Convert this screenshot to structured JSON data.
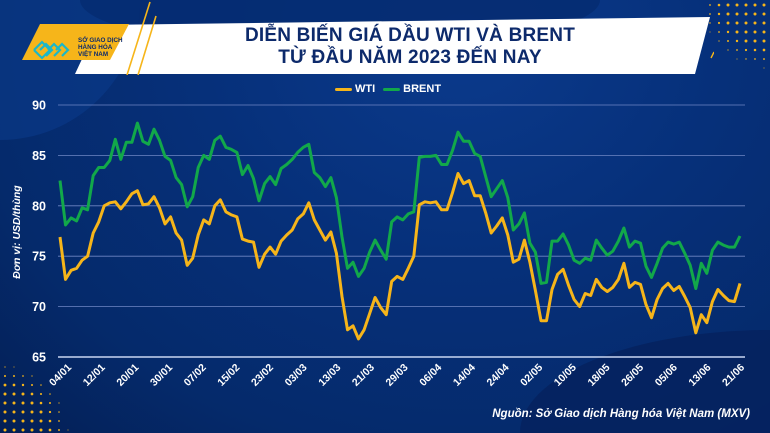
{
  "brand": {
    "logo_lines": [
      "SỞ GIAO DỊCH",
      "HÀNG HÓA",
      "VIỆT NAM"
    ],
    "accent_yellow": "#f6b51a",
    "navy": "#062a6e"
  },
  "title": {
    "line1": "DIỄN BIẾN GIÁ DẦU WTI VÀ BRENT",
    "line2": "TỪ ĐẦU NĂM 2023 ĐẾN NAY"
  },
  "source_note": "Nguồn: Sở Giao dịch Hàng hóa Việt Nam (MXV)",
  "chart_data": {
    "type": "line",
    "title": "DIỄN BIẾN GIÁ DẦU WTI VÀ BRENT TỪ ĐẦU NĂM 2023 ĐẾN NAY",
    "xlabel": "",
    "ylabel": "Đơn vị: USD/thùng",
    "ylim": [
      65,
      90
    ],
    "yticks": [
      65,
      70,
      75,
      80,
      85,
      90
    ],
    "grid": true,
    "legend_position": "top-center",
    "x_tick_labels": [
      "04/01",
      "12/01",
      "20/01",
      "30/01",
      "07/02",
      "15/02",
      "23/02",
      "03/03",
      "13/03",
      "21/03",
      "29/03",
      "06/04",
      "14/04",
      "24/04",
      "02/05",
      "10/05",
      "18/05",
      "26/05",
      "05/06",
      "13/06",
      "21/06"
    ],
    "series": [
      {
        "name": "WTI",
        "color": "#f6b51a",
        "values": [
          76.9,
          72.7,
          73.6,
          73.8,
          74.6,
          75.0,
          77.3,
          78.4,
          80.0,
          80.3,
          80.4,
          79.7,
          80.4,
          81.2,
          81.5,
          80.1,
          80.2,
          80.9,
          79.8,
          78.2,
          78.9,
          77.3,
          76.6,
          74.1,
          74.8,
          77.1,
          78.6,
          78.2,
          80.0,
          80.6,
          79.4,
          79.1,
          78.9,
          76.7,
          76.5,
          76.4,
          73.9,
          75.2,
          75.9,
          75.2,
          76.5,
          77.1,
          77.6,
          78.7,
          79.2,
          80.3,
          78.6,
          77.6,
          76.6,
          77.4,
          75.3,
          71.0,
          67.7,
          68.1,
          66.8,
          67.7,
          69.3,
          70.9,
          69.9,
          69.2,
          72.5,
          73.0,
          72.7,
          73.8,
          75.0,
          80.1,
          80.4,
          80.3,
          80.4,
          79.6,
          79.6,
          81.3,
          83.2,
          82.2,
          82.5,
          81.0,
          81.0,
          79.3,
          77.3,
          78.0,
          78.8,
          77.1,
          74.4,
          74.7,
          76.6,
          74.4,
          71.6,
          68.6,
          68.6,
          71.7,
          73.2,
          73.7,
          72.1,
          70.7,
          70.0,
          71.3,
          71.1,
          72.7,
          71.9,
          71.5,
          71.9,
          72.7,
          74.3,
          71.9,
          72.4,
          72.2,
          70.2,
          68.9,
          70.7,
          71.8,
          72.3,
          71.6,
          72.0,
          71.0,
          69.9,
          67.4,
          69.2,
          68.4,
          70.5,
          71.7,
          71.1,
          70.6,
          70.5,
          72.3
        ]
      },
      {
        "name": "BRENT",
        "color": "#12a84a",
        "values": [
          82.5,
          78.1,
          78.8,
          78.5,
          79.8,
          79.6,
          83.0,
          83.8,
          83.8,
          84.5,
          86.6,
          84.6,
          86.3,
          86.3,
          88.2,
          86.4,
          86.1,
          87.6,
          86.5,
          84.9,
          84.5,
          82.8,
          82.1,
          79.9,
          80.9,
          83.8,
          85.0,
          84.6,
          86.5,
          86.9,
          85.8,
          85.6,
          85.3,
          83.1,
          84.0,
          82.7,
          80.5,
          82.2,
          82.9,
          82.1,
          83.7,
          84.1,
          84.6,
          85.3,
          85.8,
          86.1,
          83.3,
          82.8,
          81.9,
          82.8,
          80.8,
          76.9,
          73.8,
          74.4,
          73.0,
          73.8,
          75.4,
          76.6,
          75.6,
          74.7,
          78.4,
          78.9,
          78.6,
          79.2,
          79.4,
          84.8,
          84.9,
          84.9,
          85.0,
          84.1,
          84.1,
          85.5,
          87.3,
          86.4,
          86.4,
          85.2,
          84.9,
          82.9,
          80.9,
          81.7,
          82.5,
          80.8,
          77.6,
          78.2,
          79.3,
          76.3,
          75.4,
          72.3,
          72.4,
          76.5,
          76.5,
          77.2,
          76.1,
          74.6,
          74.3,
          74.8,
          74.6,
          76.6,
          75.8,
          75.1,
          75.5,
          76.5,
          77.8,
          75.9,
          76.5,
          76.3,
          74.0,
          72.9,
          74.3,
          75.8,
          76.4,
          76.2,
          76.4,
          75.3,
          74.1,
          71.8,
          74.3,
          73.3,
          75.6,
          76.4,
          76.1,
          75.9,
          75.9,
          77.0
        ]
      }
    ]
  }
}
